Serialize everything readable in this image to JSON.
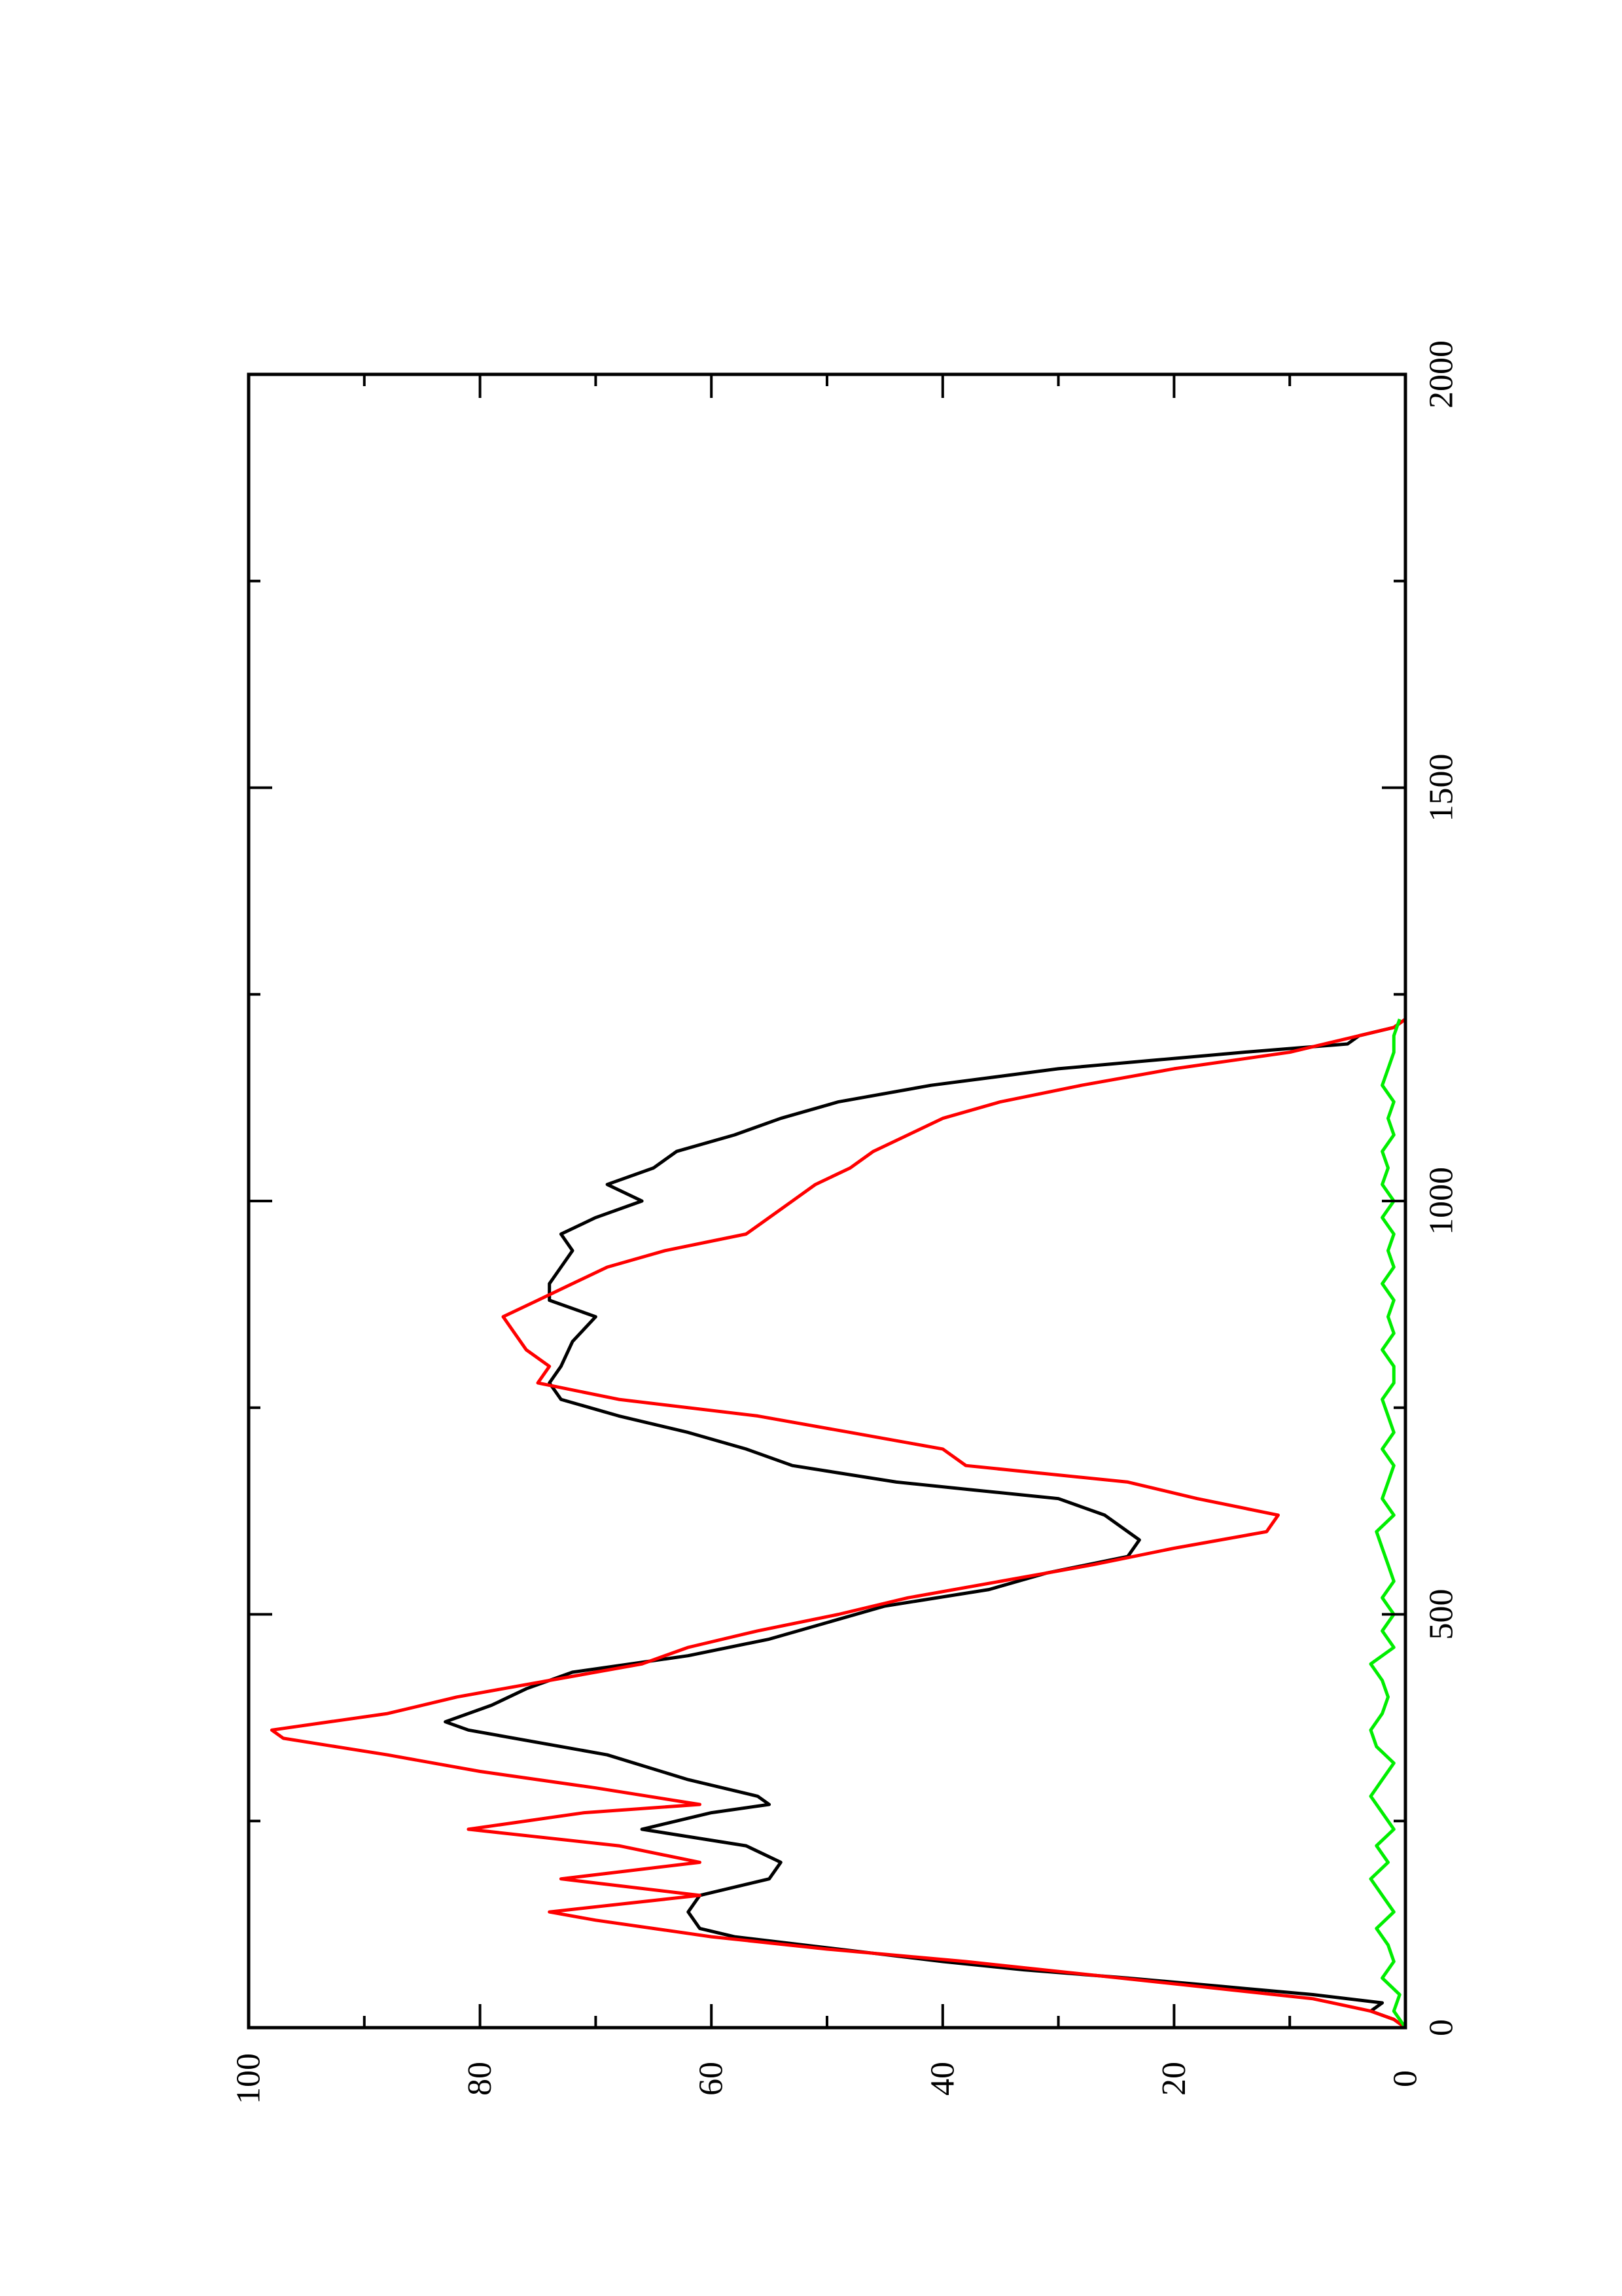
{
  "chart_data": {
    "type": "line",
    "orientation": "rotated 90 degrees counter-clockwise",
    "title": "",
    "xlabel": "",
    "ylabel": "",
    "xlim": [
      0,
      2000
    ],
    "ylim": [
      0,
      100
    ],
    "x_ticks": [
      0,
      500,
      1000,
      1500,
      2000
    ],
    "x_minor_ticks": [
      250,
      750,
      1250,
      1750
    ],
    "y_ticks": [
      0,
      20,
      40,
      60,
      80,
      100
    ],
    "y_minor_ticks": [
      10,
      30,
      50,
      70,
      90
    ],
    "grid": false,
    "legend": "none",
    "series": [
      {
        "color": "#000000",
        "points": [
          [
            0,
            0
          ],
          [
            10,
            1
          ],
          [
            20,
            3
          ],
          [
            30,
            2
          ],
          [
            40,
            8
          ],
          [
            50,
            16
          ],
          [
            60,
            24
          ],
          [
            70,
            33
          ],
          [
            80,
            40
          ],
          [
            90,
            46
          ],
          [
            100,
            52
          ],
          [
            110,
            58
          ],
          [
            120,
            61
          ],
          [
            140,
            62
          ],
          [
            160,
            61
          ],
          [
            180,
            55
          ],
          [
            200,
            54
          ],
          [
            220,
            57
          ],
          [
            240,
            66
          ],
          [
            260,
            60
          ],
          [
            270,
            55
          ],
          [
            280,
            56
          ],
          [
            300,
            62
          ],
          [
            330,
            69
          ],
          [
            360,
            81
          ],
          [
            370,
            83
          ],
          [
            390,
            79
          ],
          [
            410,
            76
          ],
          [
            430,
            72
          ],
          [
            450,
            62
          ],
          [
            470,
            55
          ],
          [
            490,
            50
          ],
          [
            510,
            45
          ],
          [
            530,
            36
          ],
          [
            550,
            31
          ],
          [
            570,
            24
          ],
          [
            590,
            23
          ],
          [
            620,
            26
          ],
          [
            640,
            30
          ],
          [
            650,
            37
          ],
          [
            660,
            44
          ],
          [
            680,
            53
          ],
          [
            700,
            57
          ],
          [
            720,
            62
          ],
          [
            740,
            68
          ],
          [
            760,
            73
          ],
          [
            780,
            74
          ],
          [
            800,
            73
          ],
          [
            830,
            72
          ],
          [
            860,
            70
          ],
          [
            880,
            74
          ],
          [
            900,
            74
          ],
          [
            920,
            73
          ],
          [
            940,
            72
          ],
          [
            960,
            73
          ],
          [
            980,
            70
          ],
          [
            1000,
            66
          ],
          [
            1020,
            69
          ],
          [
            1040,
            65
          ],
          [
            1060,
            63
          ],
          [
            1080,
            58
          ],
          [
            1100,
            54
          ],
          [
            1120,
            49
          ],
          [
            1140,
            41
          ],
          [
            1160,
            30
          ],
          [
            1170,
            22
          ],
          [
            1180,
            14
          ],
          [
            1190,
            5
          ],
          [
            1200,
            4
          ],
          [
            1210,
            1
          ],
          [
            1220,
            0
          ]
        ]
      },
      {
        "color": "#ff0000",
        "points": [
          [
            0,
            0
          ],
          [
            10,
            1
          ],
          [
            20,
            3
          ],
          [
            35,
            8
          ],
          [
            50,
            18
          ],
          [
            65,
            28
          ],
          [
            80,
            38
          ],
          [
            95,
            50
          ],
          [
            110,
            60
          ],
          [
            130,
            70
          ],
          [
            140,
            74
          ],
          [
            160,
            61
          ],
          [
            180,
            73
          ],
          [
            200,
            61
          ],
          [
            220,
            68
          ],
          [
            240,
            81
          ],
          [
            260,
            71
          ],
          [
            270,
            61
          ],
          [
            290,
            70
          ],
          [
            310,
            80
          ],
          [
            330,
            88
          ],
          [
            350,
            97
          ],
          [
            360,
            98
          ],
          [
            380,
            88
          ],
          [
            400,
            82
          ],
          [
            420,
            74
          ],
          [
            440,
            66
          ],
          [
            460,
            62
          ],
          [
            480,
            56
          ],
          [
            500,
            49
          ],
          [
            520,
            43
          ],
          [
            540,
            35
          ],
          [
            560,
            27
          ],
          [
            580,
            20
          ],
          [
            600,
            12
          ],
          [
            620,
            11
          ],
          [
            640,
            18
          ],
          [
            660,
            24
          ],
          [
            680,
            38
          ],
          [
            700,
            40
          ],
          [
            720,
            48
          ],
          [
            740,
            56
          ],
          [
            760,
            68
          ],
          [
            780,
            75
          ],
          [
            800,
            74
          ],
          [
            820,
            76
          ],
          [
            840,
            77
          ],
          [
            860,
            78
          ],
          [
            880,
            75
          ],
          [
            900,
            72
          ],
          [
            920,
            69
          ],
          [
            940,
            64
          ],
          [
            960,
            57
          ],
          [
            980,
            55
          ],
          [
            1000,
            53
          ],
          [
            1020,
            51
          ],
          [
            1040,
            48
          ],
          [
            1060,
            46
          ],
          [
            1080,
            43
          ],
          [
            1100,
            40
          ],
          [
            1120,
            35
          ],
          [
            1140,
            28
          ],
          [
            1160,
            20
          ],
          [
            1180,
            10
          ],
          [
            1200,
            4
          ],
          [
            1210,
            1
          ],
          [
            1220,
            0
          ]
        ]
      },
      {
        "color": "#00ee00",
        "points": [
          [
            0,
            0
          ],
          [
            20,
            1
          ],
          [
            40,
            0.5
          ],
          [
            60,
            2
          ],
          [
            80,
            1
          ],
          [
            100,
            1.5
          ],
          [
            120,
            2.5
          ],
          [
            140,
            1
          ],
          [
            160,
            2
          ],
          [
            180,
            3
          ],
          [
            200,
            1.5
          ],
          [
            220,
            2.5
          ],
          [
            240,
            1
          ],
          [
            260,
            2
          ],
          [
            280,
            3
          ],
          [
            300,
            2
          ],
          [
            320,
            1
          ],
          [
            340,
            2.5
          ],
          [
            360,
            3
          ],
          [
            380,
            2
          ],
          [
            400,
            1.5
          ],
          [
            420,
            2
          ],
          [
            440,
            3
          ],
          [
            460,
            1
          ],
          [
            480,
            2
          ],
          [
            500,
            1
          ],
          [
            520,
            2
          ],
          [
            540,
            1
          ],
          [
            560,
            1.5
          ],
          [
            580,
            2
          ],
          [
            600,
            2.5
          ],
          [
            620,
            1
          ],
          [
            640,
            2
          ],
          [
            660,
            1.5
          ],
          [
            680,
            1
          ],
          [
            700,
            2
          ],
          [
            720,
            1
          ],
          [
            740,
            1.5
          ],
          [
            760,
            2
          ],
          [
            780,
            1
          ],
          [
            800,
            1
          ],
          [
            820,
            2
          ],
          [
            840,
            1
          ],
          [
            860,
            1.5
          ],
          [
            880,
            1
          ],
          [
            900,
            2
          ],
          [
            920,
            1
          ],
          [
            940,
            1.5
          ],
          [
            960,
            1
          ],
          [
            980,
            2
          ],
          [
            1000,
            1
          ],
          [
            1020,
            2
          ],
          [
            1040,
            1.5
          ],
          [
            1060,
            2
          ],
          [
            1080,
            1
          ],
          [
            1100,
            1.5
          ],
          [
            1120,
            1
          ],
          [
            1140,
            2
          ],
          [
            1160,
            1.5
          ],
          [
            1180,
            1
          ],
          [
            1200,
            1
          ],
          [
            1220,
            0.5
          ]
        ]
      }
    ]
  }
}
